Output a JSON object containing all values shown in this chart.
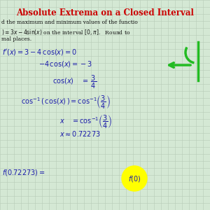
{
  "title": "Absolute Extrema on a Closed Interval",
  "title_color": "#cc0000",
  "bg_color": "#d4e8d4",
  "grid_color": "#b8ccb8",
  "text_color": "#1a1aaa",
  "black_color": "#111111",
  "highlight_color": "#ffff00",
  "arrow_color": "#22bb22",
  "figsize": [
    3.0,
    3.0
  ],
  "dpi": 100
}
